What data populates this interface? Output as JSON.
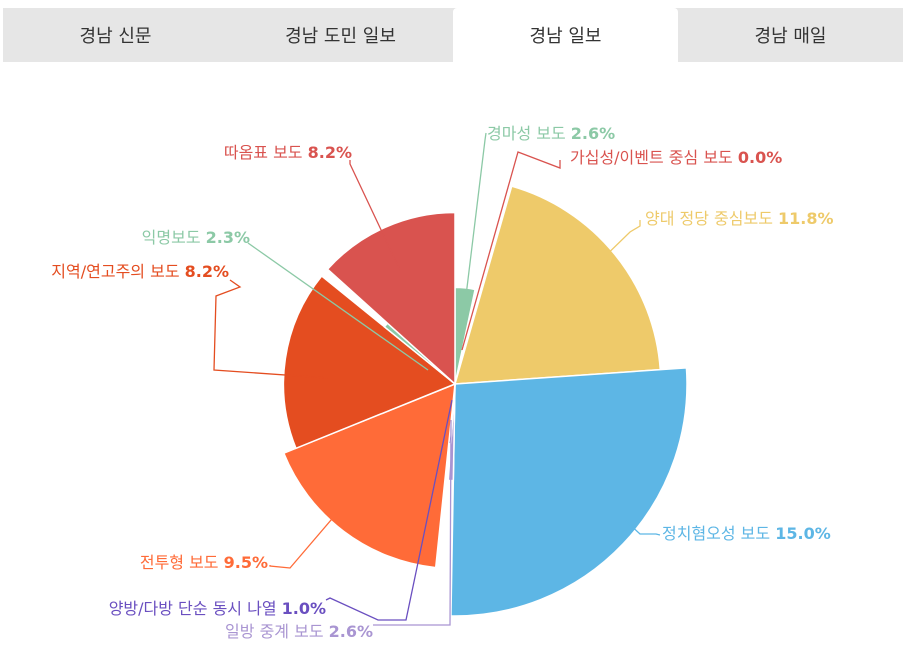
{
  "tabs": [
    {
      "label": "경남 신문",
      "active": false
    },
    {
      "label": "경남 도민 일보",
      "active": false
    },
    {
      "label": "경남 일보",
      "active": true
    },
    {
      "label": "경남 매일",
      "active": false
    }
  ],
  "chart_data": {
    "type": "pie",
    "variant": "variable-radius",
    "series": [
      {
        "name": "경마성 보도",
        "value_label": "2.6%",
        "value": 2.6,
        "color": "#8cc9a6"
      },
      {
        "name": "가십성/이벤트 중심 보도",
        "value_label": "0.0%",
        "value": 0.0,
        "color": "#d9534f"
      },
      {
        "name": "양대 정당 중심보도",
        "value_label": "11.8%",
        "value": 11.8,
        "color": "#eeca6a"
      },
      {
        "name": "정치혐오성 보도",
        "value_label": "15.0%",
        "value": 15.0,
        "color": "#5db6e5"
      },
      {
        "name": "일방 중계 보도",
        "value_label": "2.6%",
        "value": 2.6,
        "color": "#a995d2"
      },
      {
        "name": "양방/다방 단순 동시 나열",
        "value_label": "1.0%",
        "value": 1.0,
        "color": "#6a4fc0"
      },
      {
        "name": "전투형 보도",
        "value_label": "9.5%",
        "value": 9.5,
        "color": "#ff6b38"
      },
      {
        "name": "지역/연고주의 보도",
        "value_label": "8.2%",
        "value": 8.2,
        "color": "#e44d20"
      },
      {
        "name": "익명보도",
        "value_label": "2.3%",
        "value": 2.3,
        "color": "#8cc9a6"
      },
      {
        "name": "따옴표 보도",
        "value_label": "8.2%",
        "value": 8.2,
        "color": "#d9534f"
      }
    ]
  }
}
